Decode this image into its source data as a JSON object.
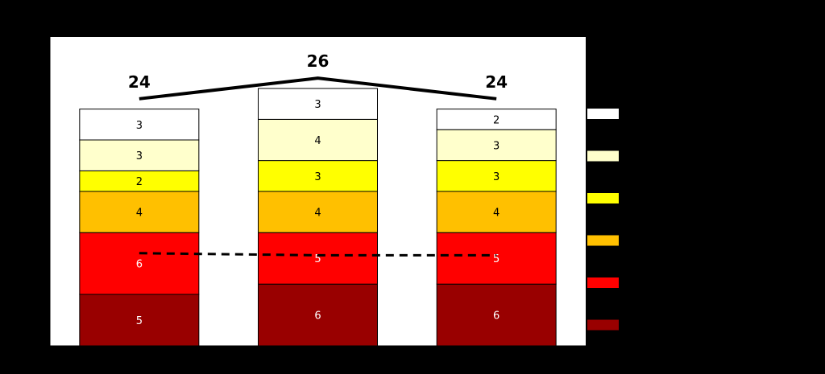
{
  "chart_data": {
    "type": "bar",
    "stacked": true,
    "categories": [
      "",
      "",
      ""
    ],
    "series": [
      {
        "color": "#990000",
        "label_color": "#ffffff",
        "values": [
          5,
          6,
          6
        ]
      },
      {
        "color": "#ff0000",
        "label_color": "#ffffff",
        "values": [
          6,
          5,
          5
        ]
      },
      {
        "color": "#ffc000",
        "label_color": "#000000",
        "values": [
          4,
          4,
          4
        ]
      },
      {
        "color": "#ffff00",
        "label_color": "#000000",
        "values": [
          2,
          3,
          3
        ]
      },
      {
        "color": "#ffffcc",
        "label_color": "#000000",
        "values": [
          3,
          4,
          3
        ]
      },
      {
        "color": "#ffffff",
        "label_color": "#000000",
        "values": [
          3,
          3,
          2
        ]
      }
    ],
    "totals": {
      "values": [
        24,
        26,
        24
      ],
      "labels": [
        "24",
        "26",
        "24"
      ],
      "style": "solid"
    },
    "dashed_line": {
      "values": [
        9,
        8.8,
        8.8
      ],
      "style": "dashed"
    },
    "ylim": [
      0,
      30
    ],
    "yticks": [
      0,
      5,
      10,
      15,
      20,
      25,
      30
    ],
    "grid": false,
    "legend": "right"
  }
}
